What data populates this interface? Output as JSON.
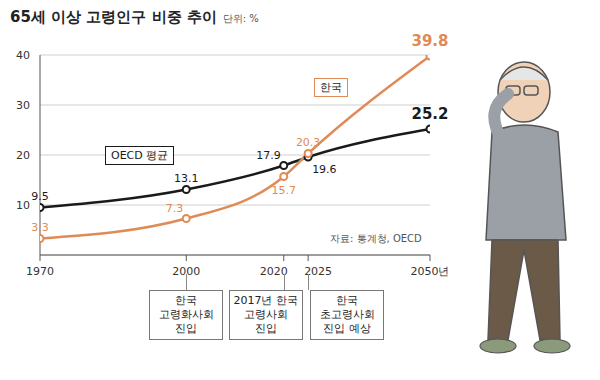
{
  "chart_data": {
    "type": "line",
    "title": "65세 이상 고령인구 비중 추이",
    "subtitle": "단위: %",
    "source": "자료: 통계청, OECD",
    "x": [
      1970,
      2000,
      2020,
      2025,
      2050
    ],
    "series": [
      {
        "name": "OECD 평균",
        "color": "#1a1a1a",
        "values": [
          9.5,
          13.1,
          17.9,
          19.6,
          25.2
        ]
      },
      {
        "name": "한국",
        "color": "#e08a55",
        "values": [
          3.3,
          7.3,
          15.7,
          20.3,
          39.8
        ]
      }
    ],
    "xlim": [
      1970,
      2050
    ],
    "xticks": [
      1970,
      2000,
      2020,
      2025,
      {
        "value": 2050,
        "label": "2050년"
      }
    ],
    "ylim": [
      0,
      40
    ],
    "yticks": [
      10,
      20,
      30,
      40
    ],
    "grid": true,
    "data_labels": true,
    "marker": "circle",
    "annotations": [
      {
        "x": 2000,
        "lines": [
          "한국",
          "고령화사회",
          "진입"
        ]
      },
      {
        "x": 2020,
        "lines": [
          "2017년 한국",
          "고령사회",
          "진입"
        ]
      },
      {
        "x": 2025,
        "lines": [
          "한국",
          "초고령사회",
          "진입 예상"
        ]
      }
    ]
  }
}
